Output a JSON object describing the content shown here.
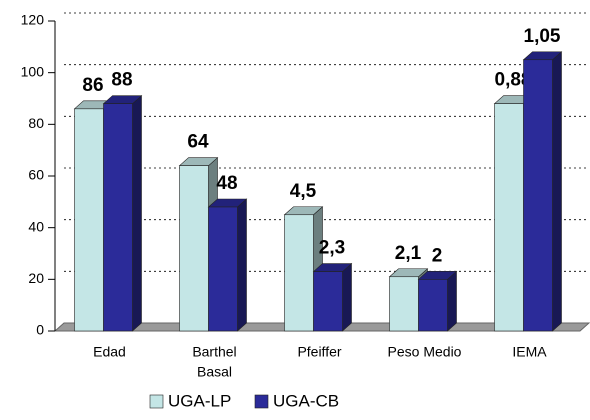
{
  "chart_data": {
    "type": "bar3d",
    "categories": [
      [
        "Edad"
      ],
      [
        "Barthel",
        "Basal"
      ],
      [
        "Pfeiffer"
      ],
      [
        "Peso Medio"
      ],
      [
        "IEMA"
      ]
    ],
    "series": [
      {
        "name": "UGA-LP",
        "color": "#c4e6e6",
        "values": [
          86,
          64,
          45,
          21,
          88
        ],
        "labels": [
          "86",
          "64",
          "4,5",
          "2,1",
          "0,88"
        ]
      },
      {
        "name": "UGA-CB",
        "color": "#2b2b99",
        "values": [
          88,
          48,
          23,
          20,
          105
        ],
        "labels": [
          "88",
          "48",
          "2,3",
          "2",
          "1,05"
        ]
      }
    ],
    "ylim": [
      0,
      120
    ],
    "yticks": [
      0,
      20,
      40,
      60,
      80,
      100,
      120
    ],
    "grid": true,
    "legend": "bottom"
  }
}
